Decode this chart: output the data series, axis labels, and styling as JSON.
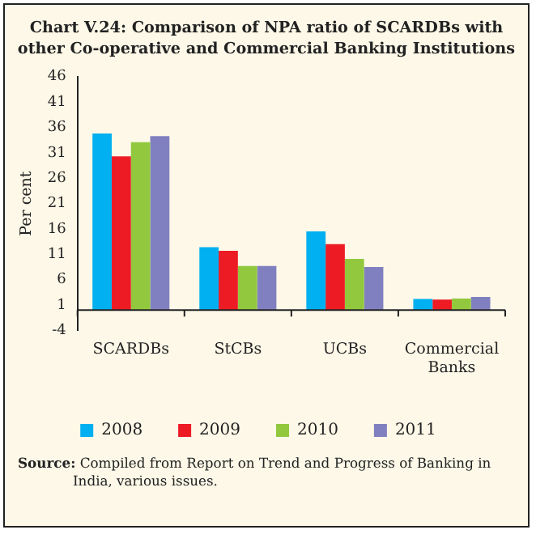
{
  "chart_data": {
    "type": "bar",
    "title": "Chart V.24: Comparison of NPA ratio of SCARDBs with other Co-operative and Commercial Banking Institutions",
    "ylabel": "Per cent",
    "categories": [
      "SCARDBs",
      "StCBs",
      "UCBs",
      "Commercial Banks"
    ],
    "series": [
      {
        "name": "2008",
        "color": "#00b0f0",
        "values": [
          34.8,
          12.4,
          15.5,
          2.2
        ]
      },
      {
        "name": "2009",
        "color": "#ed1c24",
        "values": [
          30.3,
          11.7,
          13.0,
          2.1
        ]
      },
      {
        "name": "2010",
        "color": "#92c83e",
        "values": [
          33.1,
          8.7,
          10.1,
          2.3
        ]
      },
      {
        "name": "2011",
        "color": "#8080c0",
        "values": [
          34.3,
          8.7,
          8.5,
          2.6
        ]
      }
    ],
    "ylim": [
      -4,
      46
    ],
    "yticks": [
      -4,
      1,
      6,
      11,
      16,
      21,
      26,
      31,
      36,
      41,
      46
    ],
    "grid": false,
    "legend": "bottom",
    "annotations": [
      "Source: Compiled from Report on Trend and Progress of Banking in India, various issues."
    ]
  }
}
